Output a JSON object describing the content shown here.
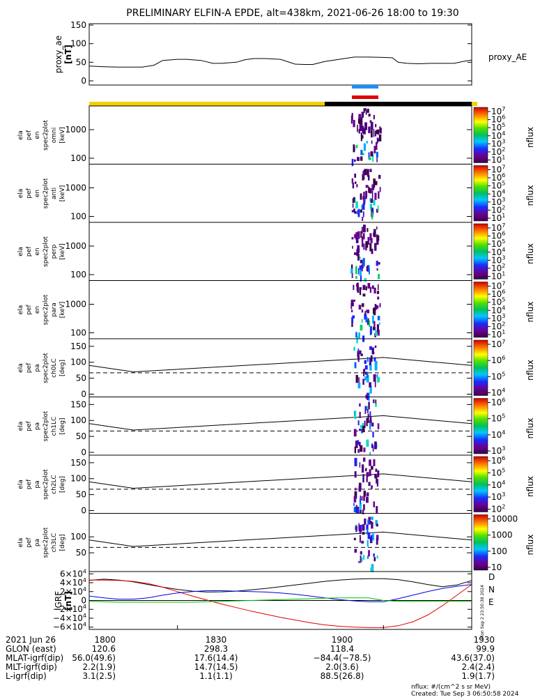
{
  "title": "PRELIMINARY ELFIN-A EPDE, alt=438km, 2021-06-26 18:00 to 19:30",
  "proxy_panel": {
    "ylabel": [
      "proxy_ae",
      "[nT]"
    ],
    "legend": "proxy_AE",
    "yticks": [
      "150",
      "100",
      "50",
      "0"
    ]
  },
  "spectrogram_panels": [
    {
      "label": [
        "ela",
        "pef",
        "en",
        "spec2plot",
        "omni",
        "[keV]"
      ],
      "yticks": [
        "1000",
        "100"
      ],
      "cbar_ticks": [
        "10^7",
        "10^6",
        "10^5",
        "10^4",
        "10^3",
        "10^2",
        "10^1"
      ]
    },
    {
      "label": [
        "ela",
        "pef",
        "en",
        "spec2plot",
        "anti",
        "[keV]"
      ],
      "yticks": [
        "1000",
        "100"
      ],
      "cbar_ticks": [
        "10^7",
        "10^6",
        "10^5",
        "10^4",
        "10^3",
        "10^2",
        "10^1"
      ]
    },
    {
      "label": [
        "ela",
        "pef",
        "en",
        "spec2plot",
        "perp",
        "[keV]"
      ],
      "yticks": [
        "1000",
        "100"
      ],
      "cbar_ticks": [
        "10^7",
        "10^6",
        "10^5",
        "10^4",
        "10^3",
        "10^2",
        "10^1"
      ]
    },
    {
      "label": [
        "ela",
        "pef",
        "en",
        "spec2plot",
        "para",
        "[keV]"
      ],
      "yticks": [
        "1000",
        "100"
      ],
      "cbar_ticks": [
        "10^7",
        "10^6",
        "10^5",
        "10^4",
        "10^3",
        "10^2",
        "10^1"
      ]
    }
  ],
  "pitch_panels": [
    {
      "label": [
        "ela",
        "pef",
        "pa",
        "spec2plot",
        "ch0LC",
        "[deg]"
      ],
      "yticks": [
        "150",
        "100",
        "50",
        "0"
      ],
      "cbar_ticks": [
        "10^7",
        "10^6",
        "10^5",
        "10^4"
      ]
    },
    {
      "label": [
        "ela",
        "pef",
        "pa",
        "spec2plot",
        "ch1LC",
        "[deg]"
      ],
      "yticks": [
        "150",
        "100",
        "50",
        "0"
      ],
      "cbar_ticks": [
        "10^6",
        "10^5",
        "10^4",
        "10^3"
      ]
    },
    {
      "label": [
        "ela",
        "pef",
        "pa",
        "spec2plot",
        "ch2LC",
        "[deg]"
      ],
      "yticks": [
        "150",
        "100",
        "50",
        "0"
      ],
      "cbar_ticks": [
        "10^6",
        "10^5",
        "10^4",
        "10^3",
        "10^2"
      ]
    },
    {
      "label": [
        "ela",
        "pef",
        "pa",
        "spec2plot",
        "ch3LC",
        "[deg]"
      ],
      "yticks": [
        "100",
        "50"
      ],
      "cbar_ticks": [
        "10000",
        "1000",
        "100",
        "10"
      ]
    }
  ],
  "cbar_label": "nflux",
  "igrf_panel": {
    "ylabel": [
      "IGRF",
      "[nT]"
    ],
    "yticks": [
      "6×10^4",
      "4×10^4",
      "2×10^4",
      "0",
      "−2×10^4",
      "−4×10^4",
      "−6×10^4"
    ],
    "legend": [
      {
        "name": "D",
        "color": "#e00000"
      },
      {
        "name": "N",
        "color": "#0000e0"
      },
      {
        "name": "E",
        "color": "#00c000"
      }
    ],
    "side_text": "Mon Sep  2 23:50:38 2024"
  },
  "info_table": {
    "rows": [
      {
        "label": "2021 Jun 26",
        "values": [
          "1800",
          "1830",
          "1900",
          "1930"
        ]
      },
      {
        "label": "GLON (east)",
        "values": [
          "120.6",
          "298.3",
          "118.4",
          "99.9"
        ]
      },
      {
        "label": "MLAT-igrf(dip)",
        "values": [
          "56.0(49.6)",
          "17.6(14.4)",
          "−84.4(−78.5)",
          "43.6(37.0)"
        ]
      },
      {
        "label": "MLT-igrf(dip)",
        "values": [
          "2.2(1.9)",
          "14.7(14.5)",
          "2.0(3.6)",
          "2.4(2.4)"
        ]
      },
      {
        "label": "L-igrf(dip)",
        "values": [
          "3.1(2.5)",
          "1.1(1.1)",
          "88.5(26.8)",
          "1.9(1.7)"
        ]
      }
    ]
  },
  "footer": {
    "units": "nflux: #/(cm^2 s sr MeV)",
    "created": "Created: Tue Sep  3 06:50:58 2024"
  },
  "chart_data": {
    "type": "line",
    "xlabel": "",
    "xlim": [
      1800,
      1930
    ],
    "proxy_ae": {
      "name": "proxy_AE",
      "ylim": [
        0,
        150
      ],
      "x": [
        1800,
        1805,
        1810,
        1815,
        1818,
        1822,
        1825,
        1830,
        1833,
        1838,
        1842,
        1845,
        1850,
        1853,
        1856,
        1860,
        1865,
        1870,
        1873,
        1876,
        1880,
        1885,
        1890,
        1895,
        1900,
        1903,
        1905,
        1908,
        1912,
        1916,
        1920,
        1924,
        1927,
        1930
      ],
      "y": [
        40,
        38,
        37,
        37,
        37,
        42,
        55,
        58,
        58,
        55,
        47,
        47,
        50,
        57,
        60,
        60,
        58,
        45,
        44,
        44,
        52,
        58,
        64,
        64,
        63,
        62,
        50,
        47,
        46,
        47,
        47,
        47,
        52,
        56
      ]
    },
    "igrf": {
      "ylim": [
        -60000,
        60000
      ],
      "x": [
        1800,
        1805,
        1810,
        1815,
        1820,
        1825,
        1830,
        1835,
        1840,
        1845,
        1850,
        1855,
        1860,
        1865,
        1870,
        1875,
        1880,
        1885,
        1890,
        1895,
        1900,
        1905,
        1910,
        1915,
        1920,
        1925,
        1930
      ],
      "series": [
        {
          "name": "total",
          "color": "#000000",
          "values": [
            45000,
            48000,
            46000,
            42000,
            36000,
            30000,
            25000,
            21000,
            19000,
            19500,
            21000,
            24000,
            27000,
            31000,
            35000,
            39000,
            43000,
            46000,
            48000,
            49000,
            49000,
            47000,
            42000,
            36000,
            31000,
            35000,
            45000
          ]
        },
        {
          "name": "D",
          "color": "#e00000",
          "values": [
            46000,
            46000,
            45000,
            43000,
            38000,
            30000,
            20000,
            10000,
            1000,
            -8000,
            -16000,
            -24000,
            -31000,
            -38000,
            -44000,
            -50000,
            -55000,
            -58000,
            -60000,
            -61000,
            -61000,
            -57000,
            -48000,
            -33000,
            -12000,
            12000,
            36000
          ]
        },
        {
          "name": "N",
          "color": "#0000e0",
          "values": [
            10000,
            6000,
            3000,
            3000,
            6000,
            12000,
            17000,
            20000,
            22000,
            22000,
            21000,
            20000,
            19000,
            17000,
            14000,
            10000,
            6000,
            2000,
            -1000,
            -3000,
            -3000,
            4000,
            12000,
            20000,
            27000,
            32000,
            36000
          ]
        },
        {
          "name": "E",
          "color": "#00c000",
          "values": [
            -2000,
            -3000,
            -4000,
            -4000,
            -4000,
            -4000,
            -4000,
            -4000,
            -3000,
            -2000,
            -1000,
            0,
            1000,
            2000,
            3000,
            4000,
            5000,
            6000,
            6000,
            6000,
            0,
            -2000,
            -2000,
            -2000,
            -2000,
            -2000,
            -2000
          ]
        }
      ]
    },
    "pitch_reference_lines": {
      "x": [
        1800,
        1815,
        1900,
        1930
      ],
      "upper_deg": [
        90,
        70,
        115,
        90
      ],
      "dashed_deg": 67
    }
  }
}
